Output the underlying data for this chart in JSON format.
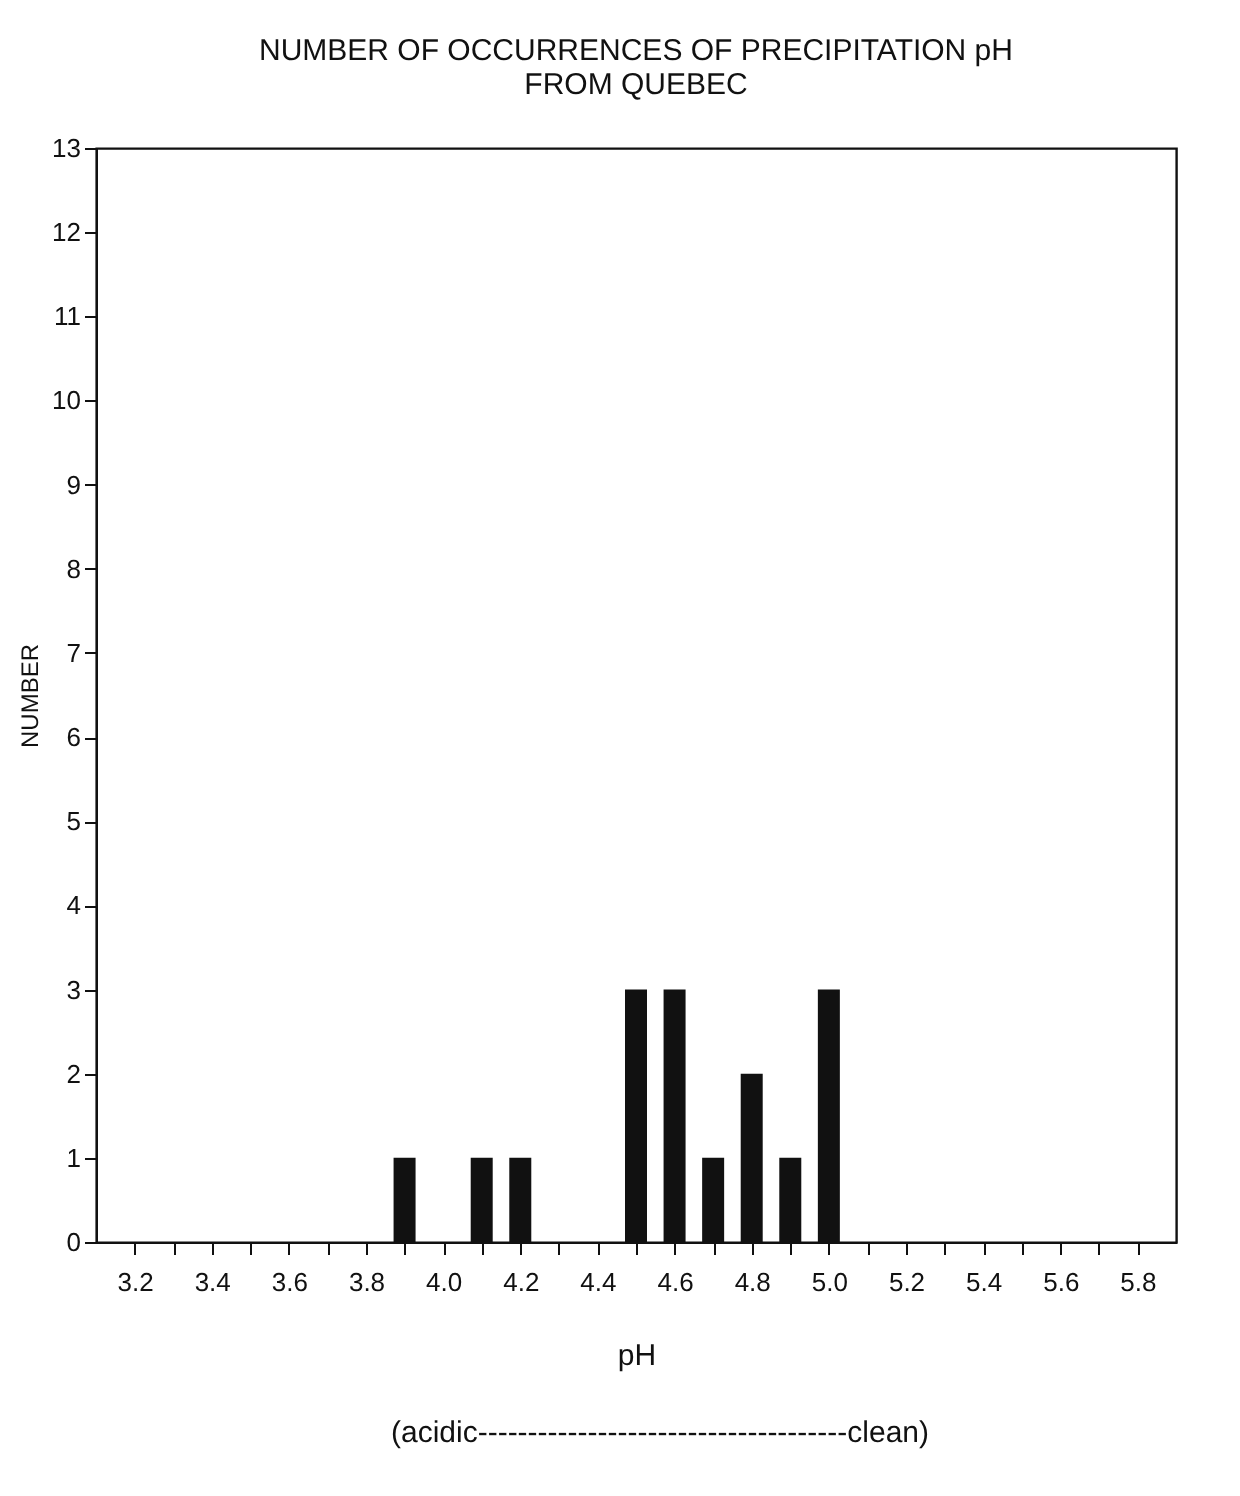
{
  "chart_data": {
    "type": "bar",
    "title": [
      "NUMBER OF OCCURRENCES OF PRECIPITATION pH",
      "FROM QUEBEC"
    ],
    "xlabel": "pH",
    "ylabel": "NUMBER",
    "annotations": [
      "(acidic-------------------------------------clean)"
    ],
    "x": [
      3.9,
      4.1,
      4.2,
      4.5,
      4.6,
      4.7,
      4.8,
      4.9,
      5.0
    ],
    "values": [
      1,
      1,
      1,
      3,
      3,
      1,
      2,
      1,
      3
    ],
    "color": "#111111",
    "xlim": [
      3.1,
      5.9
    ],
    "xticks": [
      3.2,
      {
        "value": 3.3,
        "label": null
      },
      3.4,
      {
        "value": 3.5,
        "label": null
      },
      3.6,
      {
        "value": 3.7,
        "label": null
      },
      3.8,
      {
        "value": 3.9,
        "label": null
      },
      {
        "value": 4,
        "label": "4.0"
      },
      {
        "value": 4.1,
        "label": null
      },
      4.2,
      {
        "value": 4.3,
        "label": null
      },
      4.4,
      {
        "value": 4.5,
        "label": null
      },
      4.6,
      {
        "value": 4.7,
        "label": null
      },
      4.8,
      {
        "value": 4.9,
        "label": null
      },
      {
        "value": 5,
        "label": "5.0"
      },
      {
        "value": 5.1,
        "label": null
      },
      5.2,
      {
        "value": 5.3,
        "label": null
      },
      5.4,
      {
        "value": 5.5,
        "label": null
      },
      5.6,
      {
        "value": 5.7,
        "label": null
      },
      5.8
    ],
    "ylim": [
      0,
      13
    ],
    "yticks": [
      0,
      1,
      2,
      3,
      4,
      5,
      6,
      7,
      8,
      9,
      10,
      11,
      12,
      13
    ],
    "grid": false
  }
}
